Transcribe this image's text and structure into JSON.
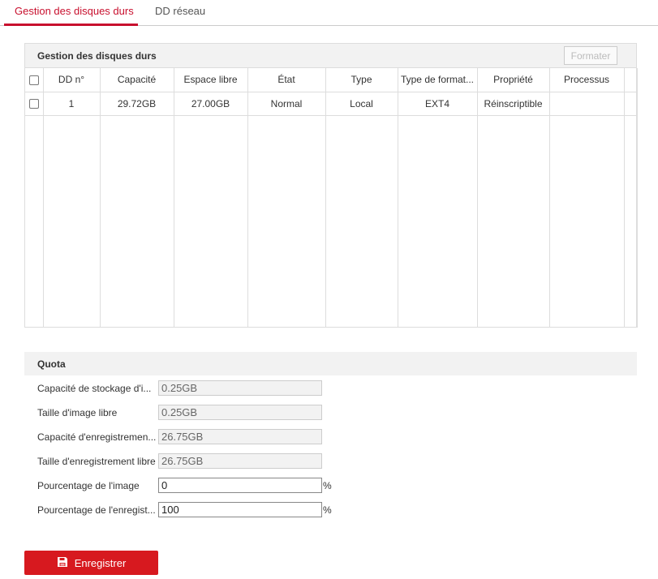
{
  "tabs": [
    {
      "label": "Gestion des disques durs",
      "active": true
    },
    {
      "label": "DD réseau",
      "active": false
    }
  ],
  "accent_color": "#c8102e",
  "hdd_panel": {
    "title": "Gestion des disques durs",
    "format_button": "Formater",
    "columns": [
      "DD n°",
      "Capacité",
      "Espace libre",
      "État",
      "Type",
      "Type de format...",
      "Propriété",
      "Processus"
    ],
    "rows": [
      [
        "1",
        "29.72GB",
        "27.00GB",
        "Normal",
        "Local",
        "EXT4",
        "Réinscriptible",
        ""
      ]
    ]
  },
  "quota": {
    "title": "Quota",
    "fields": [
      {
        "label": "Capacité de stockage d'i...",
        "value": "0.25GB",
        "editable": false
      },
      {
        "label": "Taille d'image libre",
        "value": "0.25GB",
        "editable": false
      },
      {
        "label": "Capacité d'enregistremen...",
        "value": "26.75GB",
        "editable": false
      },
      {
        "label": "Taille d'enregistrement libre",
        "value": "26.75GB",
        "editable": false
      },
      {
        "label": "Pourcentage de l'image",
        "value": "0",
        "editable": true,
        "unit": "%"
      },
      {
        "label": "Pourcentage de l'enregist...",
        "value": "100",
        "editable": true,
        "unit": "%"
      }
    ]
  },
  "save_button": {
    "label": "Enregistrer",
    "icon": "save-icon"
  }
}
